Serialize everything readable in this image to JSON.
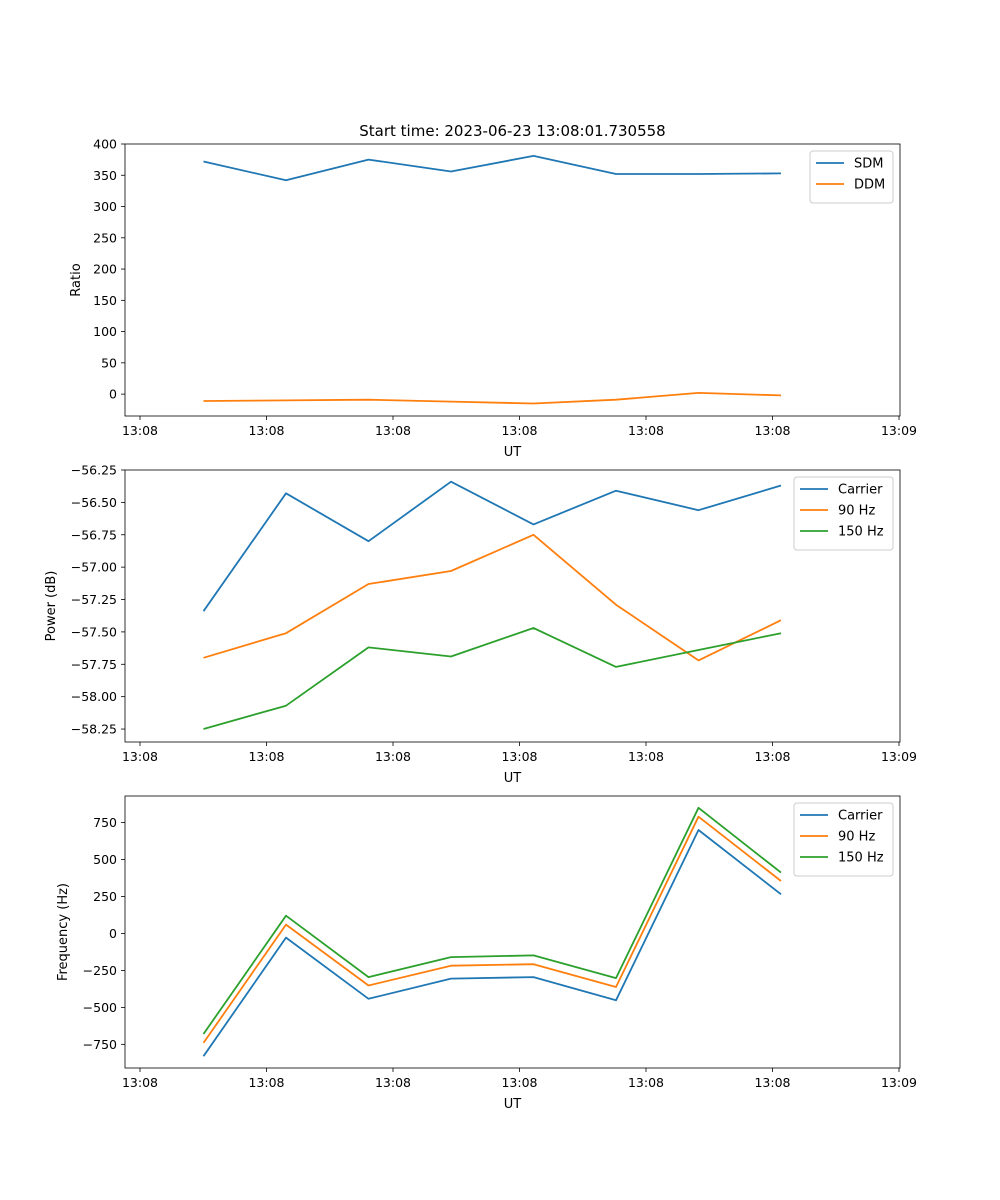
{
  "figure_title": "Start time: 2023-06-23 13:08:01.730558",
  "colors": {
    "c0": "#1f77b4",
    "c1": "#ff7f0e",
    "c2": "#2ca02c"
  },
  "chart_data": [
    {
      "type": "line",
      "title": "Start time: 2023-06-23 13:08:01.730558",
      "xlabel": "UT",
      "ylabel": "Ratio",
      "x_tick_labels": [
        "13:08",
        "13:08",
        "13:08",
        "13:08",
        "13:08",
        "13:08",
        "13:09"
      ],
      "y_ticks": [
        0,
        50,
        100,
        150,
        200,
        250,
        300,
        350,
        400
      ],
      "y_tick_labels": [
        "0",
        "50",
        "100",
        "150",
        "200",
        "250",
        "300",
        "350",
        "400"
      ],
      "ylim": [
        -35,
        400
      ],
      "legend_position": "top-right",
      "series": [
        {
          "name": "SDM",
          "color": "#1f77b4",
          "values": [
            372,
            342,
            375,
            356,
            381,
            352,
            352,
            353
          ]
        },
        {
          "name": "DDM",
          "color": "#ff7f0e",
          "values": [
            -11,
            -10,
            -9,
            -12,
            -15,
            -9,
            2,
            -2
          ]
        }
      ]
    },
    {
      "type": "line",
      "title": "",
      "xlabel": "UT",
      "ylabel": "Power (dB)",
      "x_tick_labels": [
        "13:08",
        "13:08",
        "13:08",
        "13:08",
        "13:08",
        "13:08",
        "13:09"
      ],
      "y_ticks": [
        -58.25,
        -58.0,
        -57.75,
        -57.5,
        -57.25,
        -57.0,
        -56.75,
        -56.5,
        -56.25
      ],
      "y_tick_labels": [
        "−58.25",
        "−58.00",
        "−57.75",
        "−57.50",
        "−57.25",
        "−57.00",
        "−56.75",
        "−56.50",
        "−56.25"
      ],
      "ylim": [
        -58.35,
        -56.25
      ],
      "legend_position": "top-right",
      "series": [
        {
          "name": "Carrier",
          "color": "#1f77b4",
          "values": [
            -57.34,
            -56.43,
            -56.8,
            -56.34,
            -56.67,
            -56.41,
            -56.56,
            -56.37
          ]
        },
        {
          "name": "90 Hz",
          "color": "#ff7f0e",
          "values": [
            -57.7,
            -57.51,
            -57.13,
            -57.03,
            -56.75,
            -57.29,
            -57.72,
            -57.41
          ]
        },
        {
          "name": "150 Hz",
          "color": "#2ca02c",
          "values": [
            -58.25,
            -58.07,
            -57.62,
            -57.69,
            -57.47,
            -57.77,
            -57.64,
            -57.51
          ]
        }
      ]
    },
    {
      "type": "line",
      "title": "",
      "xlabel": "UT",
      "ylabel": "Frequency (Hz)",
      "x_tick_labels": [
        "13:08",
        "13:08",
        "13:08",
        "13:08",
        "13:08",
        "13:08",
        "13:09"
      ],
      "y_ticks": [
        -750,
        -500,
        -250,
        0,
        250,
        500,
        750
      ],
      "y_tick_labels": [
        "−750",
        "−500",
        "−250",
        "0",
        "250",
        "500",
        "750"
      ],
      "ylim": [
        -910,
        930
      ],
      "legend_position": "top-right",
      "series": [
        {
          "name": "Carrier",
          "color": "#1f77b4",
          "values": [
            -830,
            -28,
            -442,
            -305,
            -295,
            -452,
            700,
            265
          ]
        },
        {
          "name": "90 Hz",
          "color": "#ff7f0e",
          "values": [
            -740,
            60,
            -352,
            -218,
            -208,
            -362,
            790,
            355
          ]
        },
        {
          "name": "150 Hz",
          "color": "#2ca02c",
          "values": [
            -680,
            120,
            -295,
            -160,
            -148,
            -302,
            850,
            412
          ]
        }
      ]
    }
  ]
}
